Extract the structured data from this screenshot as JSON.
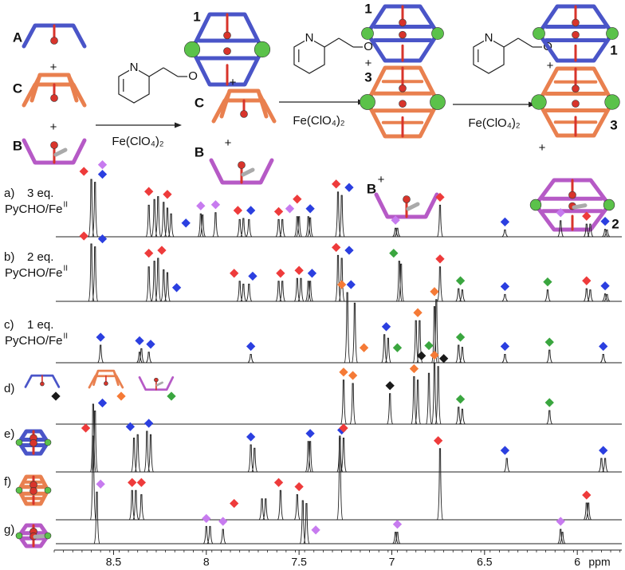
{
  "scheme": {
    "ligands": [
      "A",
      "C",
      "B"
    ],
    "cages": [
      "1",
      "3",
      "2"
    ],
    "plus": "+",
    "reagent": {
      "n": "N",
      "o": "O"
    },
    "salt": "Fe(ClO₄)₂"
  },
  "chart_data": {
    "type": "nmr",
    "x_label": "ppm",
    "xlim": [
      8.82,
      5.76
    ],
    "xticks": [
      8.5,
      8.0,
      7.5,
      7.0,
      6.5,
      6.0
    ],
    "spectra": [
      {
        "label": "a)",
        "text": "3 eq.",
        "reagent": "PyCHO/Fe",
        "oxidation": "II",
        "peaks": [
          8.62,
          8.6,
          8.31,
          8.28,
          8.26,
          8.23,
          8.21,
          8.19,
          8.03,
          8.02,
          7.95,
          7.82,
          7.8,
          7.77,
          7.61,
          7.59,
          7.51,
          7.5,
          7.45,
          7.44,
          7.29,
          7.27,
          6.98,
          6.97,
          6.74,
          6.39,
          6.09,
          5.95,
          5.93,
          5.85,
          5.84
        ],
        "heights": [
          1.0,
          0.95,
          0.55,
          0.65,
          0.7,
          0.6,
          0.5,
          0.4,
          0.4,
          0.38,
          0.42,
          0.3,
          0.32,
          0.3,
          0.3,
          0.3,
          0.35,
          0.35,
          0.35,
          0.33,
          0.78,
          0.72,
          0.15,
          0.15,
          0.55,
          0.12,
          0.28,
          0.22,
          0.22,
          0.13,
          0.12
        ],
        "markers": [
          {
            "x": 8.66,
            "color": "#ee3b3b"
          },
          {
            "x": 8.56,
            "color": "#2b3fe0"
          },
          {
            "x": 8.56,
            "color": "#c77bef"
          },
          {
            "x": 8.31,
            "color": "#ee3b3b"
          },
          {
            "x": 8.21,
            "color": "#ee3b3b"
          },
          {
            "x": 8.11,
            "color": "#2b3fe0"
          },
          {
            "x": 8.03,
            "color": "#c77bef"
          },
          {
            "x": 7.95,
            "color": "#c77bef"
          },
          {
            "x": 7.83,
            "color": "#ee3b3b"
          },
          {
            "x": 7.76,
            "color": "#2b3fe0"
          },
          {
            "x": 7.61,
            "color": "#ee3b3b"
          },
          {
            "x": 7.55,
            "color": "#c77bef"
          },
          {
            "x": 7.51,
            "color": "#ee3b3b"
          },
          {
            "x": 7.44,
            "color": "#2b3fe0"
          },
          {
            "x": 7.3,
            "color": "#ee3b3b"
          },
          {
            "x": 7.23,
            "color": "#2b3fe0"
          },
          {
            "x": 6.98,
            "color": "#c77bef"
          },
          {
            "x": 6.74,
            "color": "#ee3b3b"
          },
          {
            "x": 6.39,
            "color": "#2b3fe0"
          },
          {
            "x": 6.09,
            "color": "#c77bef"
          },
          {
            "x": 5.95,
            "color": "#ee3b3b"
          },
          {
            "x": 5.85,
            "color": "#2b3fe0"
          }
        ]
      },
      {
        "label": "b)",
        "text": "2 eq.",
        "reagent": "PyCHO/Fe",
        "oxidation": "II",
        "peaks": [
          8.62,
          8.6,
          8.31,
          8.28,
          8.26,
          8.23,
          8.21,
          7.82,
          7.8,
          7.77,
          7.61,
          7.59,
          7.51,
          7.49,
          7.45,
          7.44,
          7.29,
          7.27,
          6.96,
          6.95,
          6.74,
          6.64,
          6.62,
          6.39,
          6.16,
          5.95,
          5.93,
          5.85,
          5.84
        ],
        "heights": [
          1.0,
          0.95,
          0.6,
          0.7,
          0.75,
          0.55,
          0.5,
          0.35,
          0.3,
          0.3,
          0.35,
          0.35,
          0.4,
          0.4,
          0.35,
          0.35,
          0.8,
          0.75,
          0.7,
          0.65,
          0.6,
          0.22,
          0.2,
          0.12,
          0.2,
          0.22,
          0.2,
          0.13,
          0.12
        ],
        "markers": [
          {
            "x": 8.66,
            "color": "#ee3b3b"
          },
          {
            "x": 8.56,
            "color": "#2b3fe0"
          },
          {
            "x": 8.31,
            "color": "#ee3b3b"
          },
          {
            "x": 8.24,
            "color": "#ee3b3b"
          },
          {
            "x": 8.16,
            "color": "#2b3fe0"
          },
          {
            "x": 7.85,
            "color": "#ee3b3b"
          },
          {
            "x": 7.75,
            "color": "#2b3fe0"
          },
          {
            "x": 7.6,
            "color": "#ee3b3b"
          },
          {
            "x": 7.5,
            "color": "#ee3b3b"
          },
          {
            "x": 7.43,
            "color": "#2b3fe0"
          },
          {
            "x": 7.3,
            "color": "#ee3b3b"
          },
          {
            "x": 7.23,
            "color": "#2b3fe0"
          },
          {
            "x": 6.99,
            "color": "#3aa63f"
          },
          {
            "x": 6.74,
            "color": "#ee3b3b"
          },
          {
            "x": 6.63,
            "color": "#3aa63f"
          },
          {
            "x": 6.39,
            "color": "#2b3fe0"
          },
          {
            "x": 6.16,
            "color": "#3aa63f"
          },
          {
            "x": 5.95,
            "color": "#ee3b3b"
          },
          {
            "x": 5.85,
            "color": "#2b3fe0"
          }
        ]
      },
      {
        "label": "c)",
        "text": "1 eq.",
        "reagent": "PyCHO/Fe",
        "oxidation": "II",
        "peaks": [
          8.57,
          8.36,
          8.35,
          8.31,
          7.76,
          7.24,
          7.2,
          7.04,
          7.02,
          6.87,
          6.85,
          6.77,
          6.76,
          6.64,
          6.62,
          6.39,
          6.15,
          5.86
        ],
        "heights": [
          0.25,
          0.15,
          0.2,
          0.15,
          0.12,
          1.0,
          0.85,
          0.4,
          0.35,
          0.6,
          0.6,
          0.8,
          0.9,
          0.25,
          0.22,
          0.12,
          0.18,
          0.12
        ],
        "markers": [
          {
            "x": 8.57,
            "color": "#2b3fe0"
          },
          {
            "x": 8.36,
            "color": "#2b3fe0"
          },
          {
            "x": 8.3,
            "color": "#2b3fe0"
          },
          {
            "x": 7.76,
            "color": "#2b3fe0"
          },
          {
            "x": 7.27,
            "color": "#f57a36"
          },
          {
            "x": 7.22,
            "color": "#2b3fe0"
          },
          {
            "x": 7.15,
            "color": "#f57a36"
          },
          {
            "x": 7.03,
            "color": "#2b3fe0"
          },
          {
            "x": 6.97,
            "color": "#3aa63f"
          },
          {
            "x": 6.86,
            "color": "#f57a36"
          },
          {
            "x": 6.77,
            "color": "#f57a36"
          },
          {
            "x": 6.63,
            "color": "#3aa63f"
          },
          {
            "x": 6.39,
            "color": "#2b3fe0"
          },
          {
            "x": 6.15,
            "color": "#3aa63f"
          },
          {
            "x": 5.86,
            "color": "#2b3fe0"
          }
        ]
      },
      {
        "label": "d)",
        "peaks": [
          7.26,
          7.21,
          7.01,
          6.88,
          6.86,
          6.8,
          6.77,
          6.75,
          6.64,
          6.62,
          6.15
        ],
        "heights": [
          0.65,
          0.6,
          0.45,
          0.7,
          0.65,
          0.75,
          0.9,
          0.85,
          0.25,
          0.22,
          0.2
        ],
        "markers": [
          {
            "x": 7.26,
            "color": "#f57a36"
          },
          {
            "x": 7.21,
            "color": "#f57a36"
          },
          {
            "x": 7.01,
            "color": "#1a1a1a"
          },
          {
            "x": 6.88,
            "color": "#f57a36"
          },
          {
            "x": 6.84,
            "color": "#1a1a1a"
          },
          {
            "x": 6.8,
            "color": "#3aa63f"
          },
          {
            "x": 6.77,
            "color": "#f57a36"
          },
          {
            "x": 6.72,
            "color": "#1a1a1a"
          },
          {
            "x": 6.63,
            "color": "#3aa63f"
          },
          {
            "x": 6.15,
            "color": "#3aa63f"
          }
        ]
      },
      {
        "label": "e)",
        "peaks": [
          8.61,
          8.6,
          8.39,
          8.37,
          8.32,
          8.3,
          7.76,
          7.74,
          7.45,
          7.44,
          7.28,
          7.26,
          6.38,
          5.87,
          5.85
        ],
        "heights": [
          1.0,
          0.9,
          0.5,
          0.55,
          0.6,
          0.55,
          0.4,
          0.35,
          0.45,
          0.45,
          0.5,
          0.5,
          0.2,
          0.2,
          0.2
        ],
        "markers": [
          {
            "x": 8.56,
            "color": "#2b3fe0"
          },
          {
            "x": 8.41,
            "color": "#2b3fe0"
          },
          {
            "x": 8.31,
            "color": "#2b3fe0"
          },
          {
            "x": 7.76,
            "color": "#2b3fe0"
          },
          {
            "x": 7.44,
            "color": "#2b3fe0"
          },
          {
            "x": 7.27,
            "color": "#2b3fe0"
          },
          {
            "x": 6.39,
            "color": "#2b3fe0"
          },
          {
            "x": 5.86,
            "color": "#2b3fe0"
          }
        ]
      },
      {
        "label": "f)",
        "peaks": [
          8.61,
          8.4,
          8.38,
          8.35,
          7.7,
          7.68,
          7.6,
          7.51,
          7.28,
          6.74,
          5.95,
          5.94
        ],
        "heights": [
          1.0,
          0.35,
          0.35,
          0.3,
          0.25,
          0.25,
          0.35,
          0.3,
          1.0,
          0.85,
          0.2,
          0.2
        ],
        "markers": [
          {
            "x": 8.65,
            "color": "#ee3b3b"
          },
          {
            "x": 8.4,
            "color": "#ee3b3b"
          },
          {
            "x": 8.35,
            "color": "#ee3b3b"
          },
          {
            "x": 7.85,
            "color": "#ee3b3b"
          },
          {
            "x": 7.61,
            "color": "#ee3b3b"
          },
          {
            "x": 7.5,
            "color": "#ee3b3b"
          },
          {
            "x": 7.26,
            "color": "#ee3b3b"
          },
          {
            "x": 6.75,
            "color": "#ee3b3b"
          },
          {
            "x": 5.95,
            "color": "#ee3b3b"
          }
        ]
      },
      {
        "label": "g)",
        "peaks": [
          8.59,
          8.0,
          7.98,
          7.91,
          7.48,
          7.46,
          6.98,
          6.97,
          6.09,
          6.08
        ],
        "heights": [
          0.9,
          0.3,
          0.3,
          0.25,
          0.75,
          0.7,
          0.2,
          0.2,
          0.25,
          0.2
        ],
        "markers": [
          {
            "x": 8.57,
            "color": "#c77bef"
          },
          {
            "x": 8.0,
            "color": "#c77bef"
          },
          {
            "x": 7.91,
            "color": "#c77bef"
          },
          {
            "x": 7.41,
            "color": "#c77bef"
          },
          {
            "x": 6.97,
            "color": "#c77bef"
          },
          {
            "x": 6.09,
            "color": "#c77bef"
          }
        ]
      }
    ]
  }
}
